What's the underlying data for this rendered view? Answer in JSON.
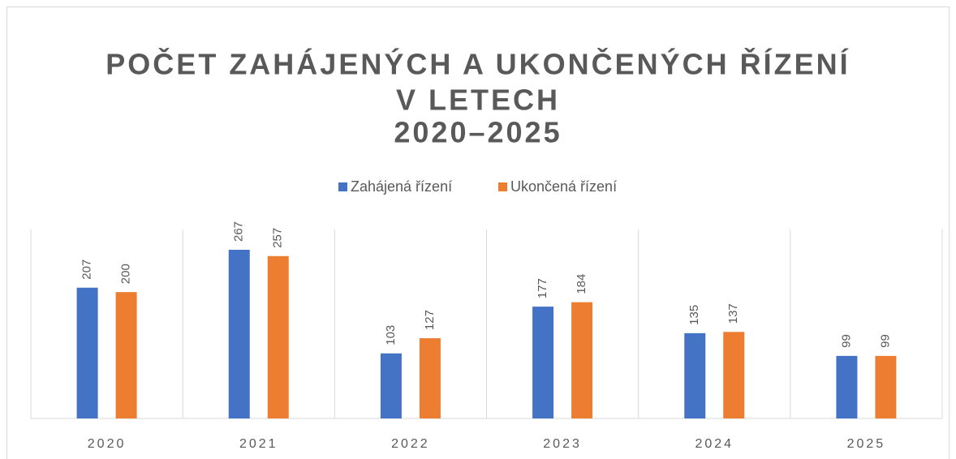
{
  "chart_data": {
    "type": "bar",
    "title": [
      "POČET ZAHÁJENÝCH A UKONČENÝCH ŘÍZENÍ",
      "V LETECH",
      "2020–2025"
    ],
    "categories": [
      "2020",
      "2021",
      "2022",
      "2023",
      "2024",
      "2025"
    ],
    "series": [
      {
        "name": "Zahájená řízení",
        "color": "#4472c4",
        "values": [
          207,
          267,
          103,
          177,
          135,
          99
        ]
      },
      {
        "name": "Ukončená řízení",
        "color": "#ed7d31",
        "values": [
          200,
          257,
          127,
          184,
          137,
          99
        ]
      }
    ]
  }
}
